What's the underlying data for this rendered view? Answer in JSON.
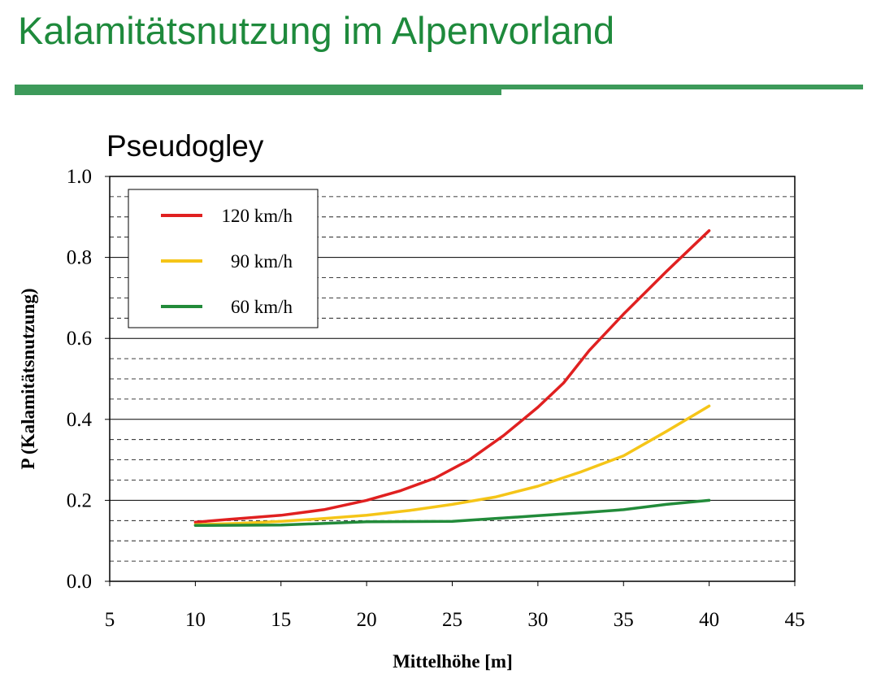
{
  "slide": {
    "title": "Kalamitätsnutzung im Alpenvorland"
  },
  "chart_data": {
    "type": "line",
    "title": "Pseudogley",
    "xlabel": "Mittelhöhe [m]",
    "ylabel": "P (Kalamitätsnutzung)",
    "xlim": [
      5,
      45
    ],
    "ylim": [
      0,
      1
    ],
    "x_ticks": [
      "5",
      "10",
      "15",
      "20",
      "25",
      "30",
      "35",
      "40",
      "45"
    ],
    "y_ticks": [
      "0.0",
      "0.2",
      "0.4",
      "0.6",
      "0.8",
      "1.0"
    ],
    "x_tick_values": [
      5,
      10,
      15,
      20,
      25,
      30,
      35,
      40,
      45
    ],
    "y_tick_values": [
      0,
      0.2,
      0.4,
      0.6,
      0.8,
      1.0
    ],
    "grid": "horizontal (solid major every 0.2, dashed minor every 0.05)",
    "legend_position": "top-left",
    "series": [
      {
        "name": "120 km/h",
        "color": "#e02020",
        "x": [
          10,
          12,
          15,
          17.5,
          20,
          22,
          24,
          26,
          28,
          30,
          31.5,
          33,
          35,
          37.5,
          40
        ],
        "y": [
          0.146,
          0.153,
          0.163,
          0.177,
          0.2,
          0.224,
          0.255,
          0.3,
          0.36,
          0.43,
          0.49,
          0.57,
          0.66,
          0.765,
          0.866
        ]
      },
      {
        "name": "90 km/h",
        "color": "#f5c518",
        "x": [
          10,
          12.5,
          15,
          17.5,
          20,
          22.5,
          25,
          27.5,
          30,
          32.5,
          35,
          37.5,
          40
        ],
        "y": [
          0.14,
          0.143,
          0.148,
          0.155,
          0.163,
          0.175,
          0.19,
          0.208,
          0.235,
          0.27,
          0.31,
          0.37,
          0.433
        ]
      },
      {
        "name": "60 km/h",
        "color": "#228b3a",
        "x": [
          10,
          15,
          20,
          25,
          27.5,
          30,
          32.5,
          35,
          37.5,
          40
        ],
        "y": [
          0.138,
          0.139,
          0.147,
          0.148,
          0.155,
          0.162,
          0.169,
          0.177,
          0.19,
          0.2
        ]
      }
    ]
  }
}
